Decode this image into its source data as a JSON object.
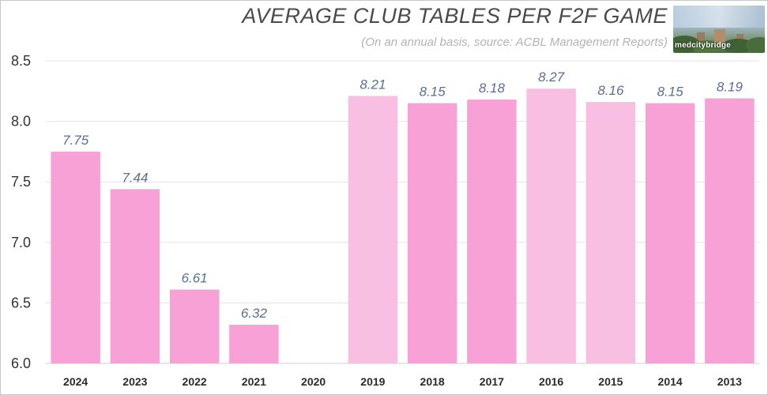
{
  "chart_data": {
    "type": "bar",
    "title": "AVERAGE CLUB TABLES PER F2F GAME",
    "subtitle": "(On an annual basis, source: ACBL Management Reports)",
    "categories": [
      "2024",
      "2023",
      "2022",
      "2021",
      "2020",
      "2019",
      "2018",
      "2017",
      "2016",
      "2015",
      "2014",
      "2013"
    ],
    "values": [
      7.75,
      7.44,
      6.61,
      6.32,
      null,
      8.21,
      8.15,
      8.18,
      8.27,
      8.16,
      8.15,
      8.19
    ],
    "data_labels": [
      "7.75",
      "7.44",
      "6.61",
      "6.32",
      "",
      "8.21",
      "8.15",
      "8.18",
      "8.27",
      "8.16",
      "8.15",
      "8.19"
    ],
    "ylim": [
      6.0,
      8.5
    ],
    "yticks": [
      "6.0",
      "6.5",
      "7.0",
      "7.5",
      "8.0",
      "8.5"
    ],
    "grid": true,
    "colors": {
      "dark": "#f7a1d6",
      "light": "#f9bfe3",
      "label": "#5a6e96"
    },
    "bar_shades": [
      "dark",
      "dark",
      "dark",
      "dark",
      "dark",
      "light",
      "dark",
      "dark",
      "light",
      "light",
      "dark",
      "dark"
    ]
  },
  "logo": {
    "brand_text": "medcitybridge",
    "icon": "city-skyline-photo"
  }
}
